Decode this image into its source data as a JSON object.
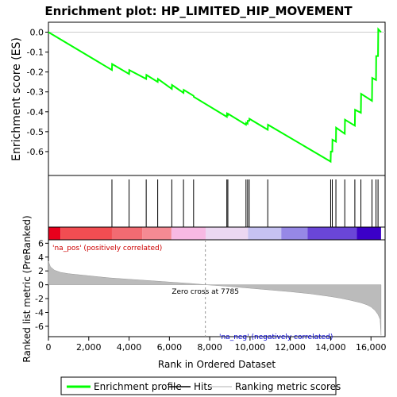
{
  "chart_data": {
    "type": "line",
    "title": "Enrichment plot: HP_LIMITED_HIP_MOVEMENT",
    "xlabel": "Rank in Ordered Dataset",
    "ylabel_top": "Enrichment score (ES)",
    "ylabel_bottom": "Ranked list metric (PreRanked)",
    "xlim": [
      0,
      16700
    ],
    "es_ylim": [
      -0.72,
      0.05
    ],
    "metric_ylim": [
      -7.5,
      6.5
    ],
    "x_ticks": [
      0,
      2000,
      4000,
      6000,
      8000,
      10000,
      12000,
      14000,
      16000
    ],
    "x_tick_labels": [
      "0",
      "2,000",
      "4,000",
      "6,000",
      "8,000",
      "10,000",
      "12,000",
      "14,000",
      "16,000"
    ],
    "es_ticks": [
      0.0,
      -0.1,
      -0.2,
      -0.3,
      -0.4,
      -0.5,
      -0.6
    ],
    "es_tick_labels": [
      "0.0",
      "-0.1",
      "-0.2",
      "-0.3",
      "-0.4",
      "-0.5",
      "-0.6"
    ],
    "metric_ticks": [
      6,
      4,
      2,
      0,
      -2,
      -4,
      -6
    ],
    "metric_tick_labels": [
      "6",
      "4",
      "2",
      "0",
      "-2",
      "-4",
      "-6"
    ],
    "series": [
      {
        "name": "Enrichment profile",
        "color": "#00ff00",
        "x": [
          0,
          3150,
          3160,
          4000,
          4010,
          4850,
          4860,
          5420,
          5430,
          6120,
          6130,
          6700,
          6710,
          7200,
          7210,
          8850,
          8860,
          8900,
          8910,
          9800,
          9810,
          9880,
          9890,
          9960,
          9970,
          10880,
          10890,
          14000,
          14010,
          14080,
          14090,
          14260,
          14270,
          14700,
          14710,
          15200,
          15210,
          15500,
          15510,
          16050,
          16060,
          16250,
          16260,
          16350,
          16360,
          16500
        ],
        "y": [
          0.0,
          -0.19,
          -0.16,
          -0.21,
          -0.19,
          -0.235,
          -0.215,
          -0.25,
          -0.235,
          -0.285,
          -0.265,
          -0.305,
          -0.29,
          -0.32,
          -0.325,
          -0.425,
          -0.41,
          -0.415,
          -0.41,
          -0.465,
          -0.455,
          -0.46,
          -0.445,
          -0.445,
          -0.435,
          -0.49,
          -0.465,
          -0.65,
          -0.6,
          -0.6,
          -0.54,
          -0.55,
          -0.48,
          -0.51,
          -0.44,
          -0.47,
          -0.39,
          -0.405,
          -0.31,
          -0.345,
          -0.23,
          -0.24,
          -0.12,
          -0.12,
          0.015,
          0.0
        ]
      }
    ],
    "hits": [
      3150,
      4000,
      4850,
      5420,
      6120,
      6700,
      7200,
      8850,
      8900,
      9800,
      9880,
      9960,
      10880,
      14000,
      14080,
      14260,
      14700,
      15200,
      15500,
      16050,
      16250,
      16350
    ],
    "metric_curve": {
      "x": [
        0,
        100,
        300,
        600,
        1000,
        2000,
        3000,
        4000,
        5000,
        6000,
        7000,
        7785,
        9000,
        10000,
        11000,
        12000,
        13000,
        14000,
        14500,
        15000,
        15500,
        15800,
        16000,
        16200,
        16350,
        16450,
        16500
      ],
      "y": [
        3.4,
        2.6,
        2.1,
        1.8,
        1.6,
        1.3,
        1.0,
        0.8,
        0.6,
        0.4,
        0.2,
        0.0,
        -0.25,
        -0.5,
        -0.75,
        -1.0,
        -1.3,
        -1.7,
        -1.95,
        -2.25,
        -2.6,
        -2.9,
        -3.2,
        -3.7,
        -4.3,
        -5.0,
        -7.3
      ]
    },
    "zero_cross": 7785,
    "zero_cross_label": "Zero cross at 7785",
    "pos_label": "'na_pos' (positively correlated)",
    "neg_label": "'na_neg' (negatively correlated)",
    "heat_bar": [
      {
        "from": 0,
        "to": 600,
        "color": "#e8001c"
      },
      {
        "from": 600,
        "to": 3150,
        "color": "#f24d52"
      },
      {
        "from": 3150,
        "to": 4650,
        "color": "#f26b72"
      },
      {
        "from": 4650,
        "to": 6100,
        "color": "#f58a93"
      },
      {
        "from": 6100,
        "to": 7800,
        "color": "#f7b9e3"
      },
      {
        "from": 7800,
        "to": 9900,
        "color": "#ecd8f2"
      },
      {
        "from": 9900,
        "to": 11550,
        "color": "#c6c2f2"
      },
      {
        "from": 11550,
        "to": 12850,
        "color": "#9688e6"
      },
      {
        "from": 12850,
        "to": 15300,
        "color": "#6a46d8"
      },
      {
        "from": 15300,
        "to": 16500,
        "color": "#3b00c8"
      }
    ],
    "legend": [
      {
        "label": "Enrichment profile",
        "color": "#00ff00",
        "style": "thick"
      },
      {
        "label": "Hits",
        "color": "#000000",
        "style": "thin"
      },
      {
        "label": "Ranking metric scores",
        "color": "#cccccc",
        "style": "thin"
      }
    ]
  }
}
